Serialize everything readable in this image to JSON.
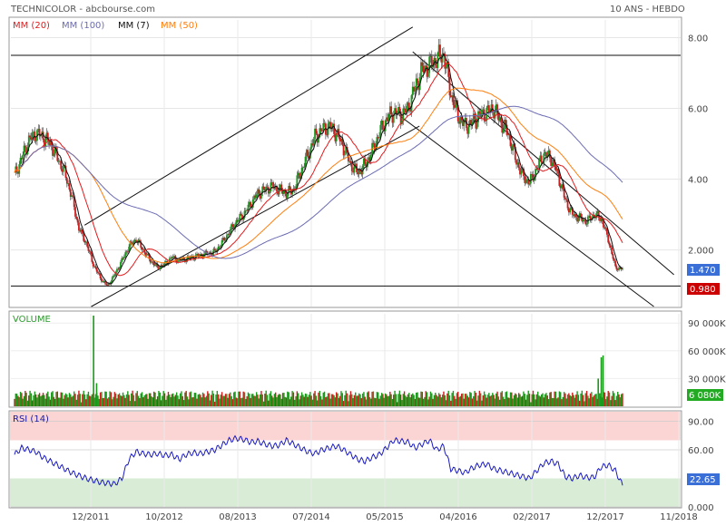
{
  "header": {
    "title": "TECHNICOLOR - abcbourse.com",
    "period": "10 ANS - HEBDO"
  },
  "legend": [
    {
      "label": "MM (20)",
      "color": "#e41a1c"
    },
    {
      "label": "MM (100)",
      "color": "#6b6bb4"
    },
    {
      "label": "MM (7)",
      "color": "#111111"
    },
    {
      "label": "MM (50)",
      "color": "#ff7f0e"
    }
  ],
  "price_badges": {
    "last": "1.470",
    "last_color": "#3a6fd8",
    "support": "0.980",
    "support_color": "#cc0000"
  },
  "volume": {
    "label": "VOLUME",
    "last_badge": "6 080K",
    "badge_color": "#22aa22"
  },
  "rsi": {
    "label": "RSI (14)",
    "last_badge": "22.65",
    "badge_color": "#3a6fd8"
  },
  "chart_data": [
    {
      "type": "candlestick",
      "title": "TECHNICOLOR - abcbourse.com",
      "ylim": [
        0.4,
        8.5
      ],
      "yticks": [
        "8.00",
        "6.00",
        "4.00",
        "2.000"
      ],
      "ytick_values": [
        8,
        6,
        4,
        2
      ],
      "xticks": [
        "12/2011",
        "10/2012",
        "08/2013",
        "07/2014",
        "05/2015",
        "04/2016",
        "02/2017",
        "12/2017",
        "11/2018"
      ],
      "series": [
        {
          "name": "MM (7)",
          "color": "#111111"
        },
        {
          "name": "MM (20)",
          "color": "#e41a1c"
        },
        {
          "name": "MM (50)",
          "color": "#ff7f0e"
        },
        {
          "name": "MM (100)",
          "color": "#6b6bb4"
        }
      ],
      "close": [
        4.1,
        4.6,
        5.1,
        5.3,
        5.2,
        5.0,
        4.6,
        4.2,
        3.5,
        2.6,
        2.2,
        1.6,
        1.2,
        0.98,
        1.3,
        1.7,
        2.1,
        2.3,
        2.0,
        1.7,
        1.5,
        1.6,
        1.8,
        1.7,
        1.75,
        1.8,
        1.85,
        1.9,
        1.95,
        2.2,
        2.5,
        2.8,
        3.0,
        3.3,
        3.6,
        3.7,
        3.8,
        3.7,
        3.6,
        3.7,
        4.2,
        4.7,
        5.2,
        5.4,
        5.5,
        5.3,
        4.9,
        4.4,
        4.2,
        4.4,
        4.8,
        5.3,
        5.7,
        5.9,
        5.8,
        6.0,
        6.6,
        7.1,
        7.2,
        7.4,
        7.55,
        6.4,
        5.8,
        5.5,
        5.6,
        5.8,
        5.9,
        6.0,
        5.6,
        5.3,
        4.6,
        4.1,
        3.9,
        4.3,
        4.7,
        4.6,
        4.1,
        3.4,
        3.0,
        2.9,
        2.8,
        3.0,
        2.9,
        2.3,
        1.5,
        1.47
      ],
      "ma_periods": [
        7,
        20,
        50,
        100
      ],
      "trendlines": [
        {
          "p1": [
            0.11,
            2.7
          ],
          "p2": [
            0.6,
            8.3
          ]
        },
        {
          "p1": [
            0.12,
            0.4
          ],
          "p2": [
            0.61,
            5.5
          ]
        },
        {
          "p1": [
            0.6,
            7.6
          ],
          "p2": [
            0.99,
            1.3
          ]
        },
        {
          "p1": [
            0.58,
            5.8
          ],
          "p2": [
            0.96,
            0.4
          ]
        },
        {
          "p1": [
            0,
            7.5
          ],
          "p2": [
            1,
            7.5
          ]
        },
        {
          "p1": [
            0,
            0.98
          ],
          "p2": [
            1,
            0.98
          ]
        }
      ]
    },
    {
      "type": "bar",
      "name": "VOLUME",
      "ylim": [
        0,
        100000
      ],
      "yticks": [
        "90 000K",
        "60 000K",
        "30 000K"
      ],
      "ytick_values": [
        90000,
        60000,
        30000
      ],
      "spikes": [
        {
          "pos": 0.13,
          "value": 98000
        },
        {
          "pos": 0.135,
          "value": 25000
        },
        {
          "pos": 0.965,
          "value": 53000
        },
        {
          "pos": 0.968,
          "value": 55000
        },
        {
          "pos": 0.96,
          "value": 30000
        }
      ],
      "last_value": 6080
    },
    {
      "type": "line",
      "name": "RSI (14)",
      "ylim": [
        0,
        100
      ],
      "yticks": [
        "90.00",
        "60.00",
        "0.000"
      ],
      "ytick_values": [
        90,
        60,
        0
      ],
      "bands": [
        {
          "from": 70,
          "to": 100,
          "color": "#fbd4d4"
        },
        {
          "from": 0,
          "to": 30,
          "color": "#d9ecd6"
        }
      ],
      "values": [
        55,
        62,
        60,
        58,
        52,
        48,
        44,
        40,
        36,
        33,
        30,
        28,
        26,
        25,
        24,
        30,
        50,
        58,
        56,
        55,
        56,
        54,
        55,
        50,
        55,
        57,
        56,
        58,
        60,
        65,
        70,
        72,
        71,
        68,
        69,
        66,
        64,
        65,
        70,
        66,
        62,
        58,
        56,
        60,
        62,
        64,
        60,
        55,
        50,
        48,
        52,
        55,
        62,
        70,
        69,
        68,
        62,
        66,
        70,
        60,
        64,
        40,
        38,
        36,
        41,
        44,
        45,
        40,
        38,
        36,
        34,
        32,
        30,
        38,
        46,
        48,
        45,
        32,
        30,
        33,
        31,
        31,
        42,
        44,
        38,
        22.65
      ],
      "last_value": 22.65
    }
  ]
}
